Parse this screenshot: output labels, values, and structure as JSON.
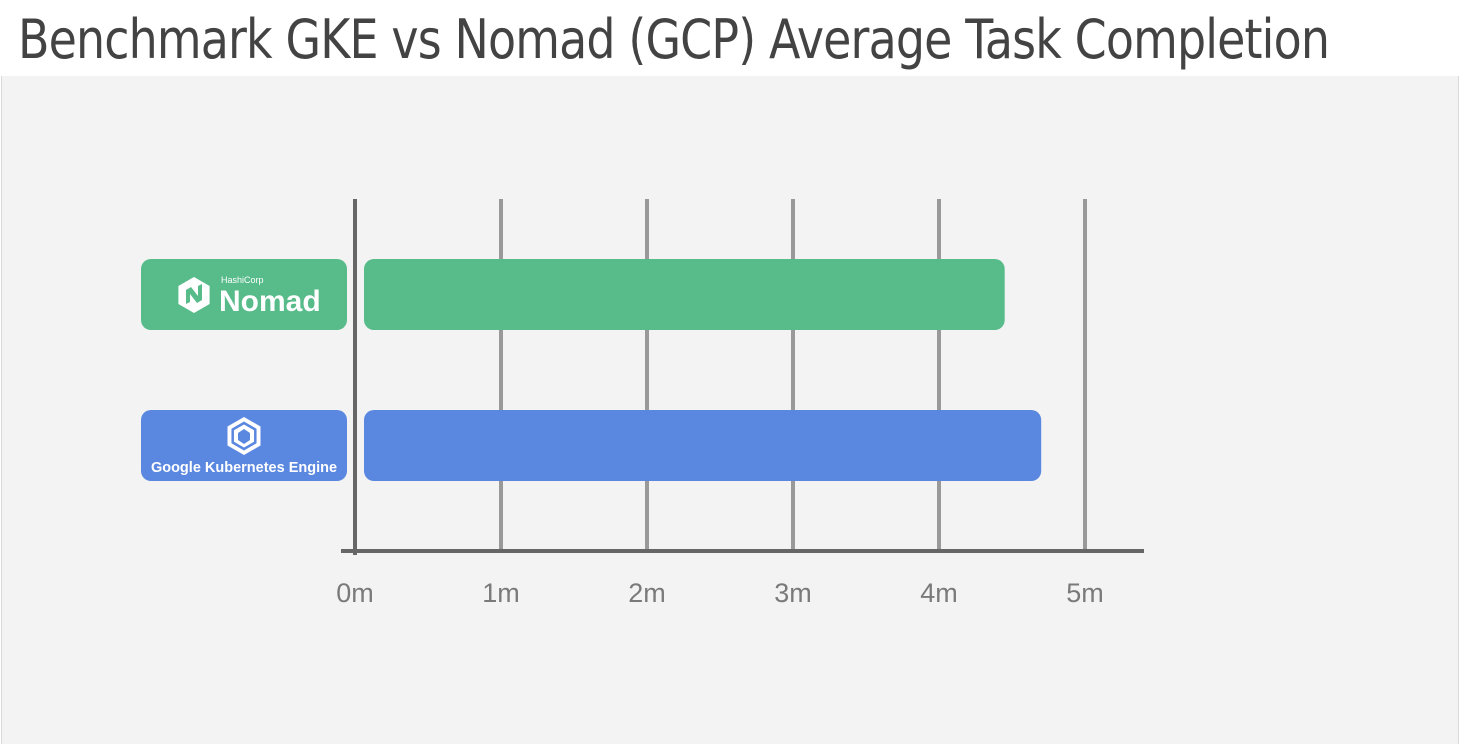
{
  "title": "Benchmark GKE vs Nomad (GCP) Average Task Completion",
  "chart_data": {
    "type": "bar",
    "orientation": "horizontal",
    "title": "Benchmark GKE vs Nomad (GCP) Average Task Completion",
    "xlabel": "",
    "ylabel": "",
    "unit": "minutes",
    "xlim": [
      0,
      5
    ],
    "x_ticks": [
      0,
      1,
      2,
      3,
      4,
      5
    ],
    "x_tick_labels": [
      "0m",
      "1m",
      "2m",
      "3m",
      "4m",
      "5m"
    ],
    "grid": true,
    "legend": "none",
    "categories": [
      {
        "logo_vendor": "HashiCorp",
        "logo_name": "Nomad",
        "value": 4.45,
        "color": "#57bb8a"
      },
      {
        "logo_vendor": "",
        "logo_name": "Google Kubernetes Engine",
        "value": 4.7,
        "color": "#5a87e0"
      }
    ]
  },
  "colors": {
    "nomad": "#57bb8a",
    "gke": "#5a87e0",
    "axis": "#666666",
    "grid": "#999999",
    "panel": "#f3f3f3",
    "title": "#434343"
  },
  "icons": {
    "nomad_logo": "nomad-logo-icon",
    "gke_logo": "gke-logo-icon"
  }
}
